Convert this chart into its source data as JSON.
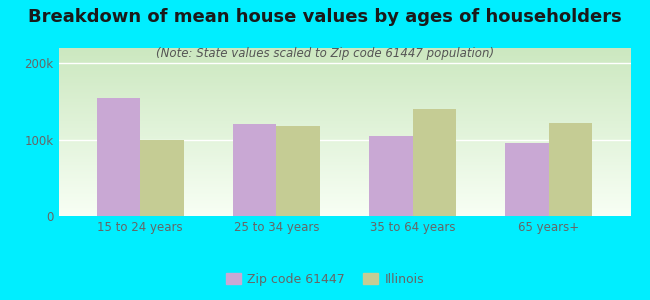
{
  "title": "Breakdown of mean house values by ages of householders",
  "subtitle": "(Note: State values scaled to Zip code 61447 population)",
  "categories": [
    "15 to 24 years",
    "25 to 34 years",
    "35 to 64 years",
    "65 years+"
  ],
  "zip_values": [
    155000,
    120000,
    105000,
    95000
  ],
  "state_values": [
    100000,
    118000,
    140000,
    122000
  ],
  "zip_color": "#c9a8d4",
  "state_color": "#c5cc94",
  "background_outer": "#00eeff",
  "ylim": [
    0,
    220000
  ],
  "ytick_labels": [
    "0",
    "100k",
    "200k"
  ],
  "ytick_values": [
    0,
    100000,
    200000
  ],
  "legend_zip_label": "Zip code 61447",
  "legend_state_label": "Illinois",
  "bar_width": 0.32,
  "title_fontsize": 13,
  "subtitle_fontsize": 8.5,
  "tick_fontsize": 8.5,
  "legend_fontsize": 9,
  "title_color": "#1a1a1a",
  "subtitle_color": "#555555",
  "tick_color": "#666666"
}
